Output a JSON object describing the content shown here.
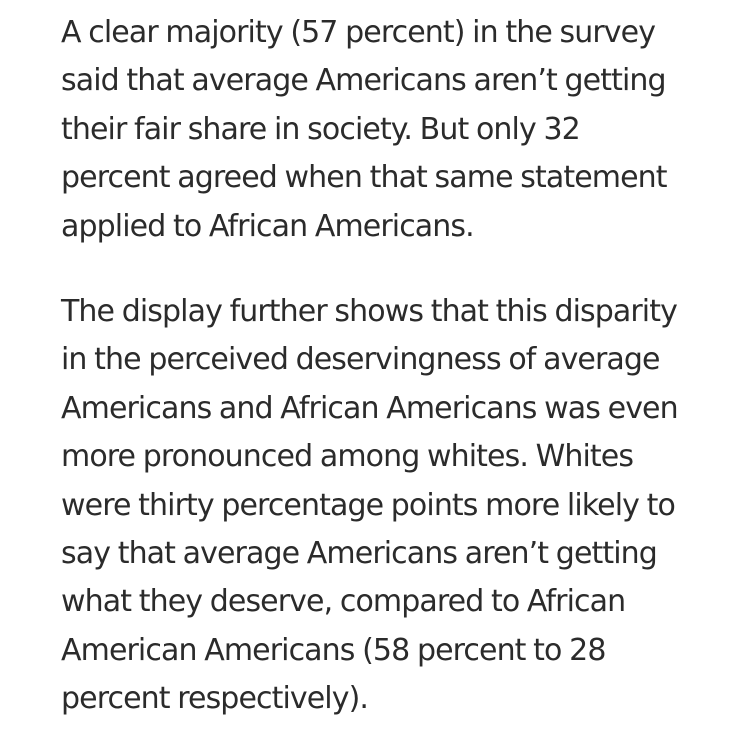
{
  "article": {
    "paragraphs": [
      {
        "lines": [
          "A clear majority (57 percent) in the survey",
          "said that average Americans aren’t getting",
          "their fair share in society. But only 32",
          "percent agreed when that same statement",
          "applied to African Americans."
        ]
      },
      {
        "lines": [
          "The display further shows that this disparity",
          "in the perceived deservingness of average",
          "Americans and African Americans was even",
          "more pronounced among whites. Whites",
          "were thirty percentage points more likely to",
          "say that average Americans aren’t getting",
          "what they deserve, compared to African",
          "American Americans (58 percent to 28",
          "percent respectively)."
        ]
      }
    ]
  }
}
